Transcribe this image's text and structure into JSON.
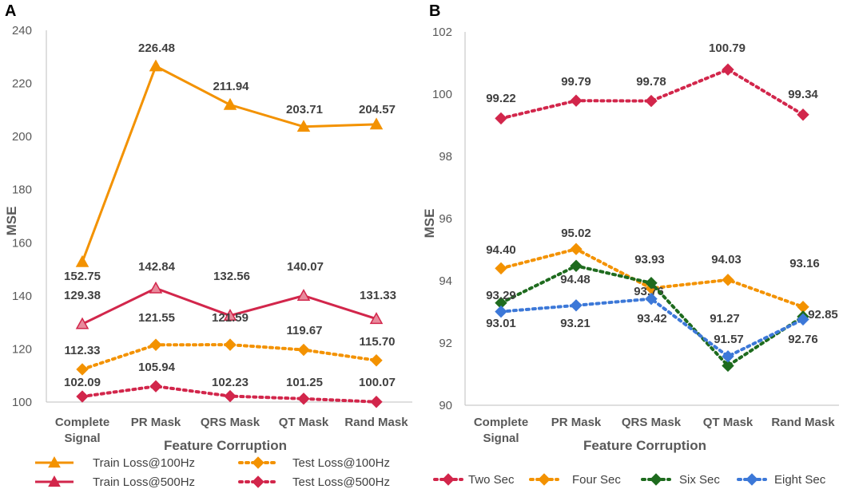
{
  "chart_data": [
    {
      "panel": "A",
      "type": "line",
      "title": "",
      "xlabel": "Feature Corruption",
      "ylabel": "MSE",
      "ylim": [
        100,
        240
      ],
      "yticks": [
        "100",
        "120",
        "140",
        "160",
        "180",
        "200",
        "220",
        "240"
      ],
      "grid": false,
      "legend_position": "bottom",
      "categories": [
        "Complete\nSignal",
        "PR Mask",
        "QRS Mask",
        "QT Mask",
        "Rand Mask"
      ],
      "series": [
        {
          "name": "Train Loss@100Hz",
          "color": "#F39200",
          "style": "solid",
          "marker": "triangle",
          "values": [
            152.75,
            226.48,
            211.94,
            203.71,
            204.57
          ],
          "labels": [
            "152.75",
            "226.48",
            "211.94",
            "203.71",
            "204.57"
          ]
        },
        {
          "name": "Train Loss@500Hz",
          "color": "#D2264B",
          "style": "solid",
          "marker": "triangle",
          "values": [
            129.38,
            142.84,
            132.56,
            140.07,
            131.33
          ],
          "labels": [
            "129.38",
            "142.84",
            "132.56",
            "140.07",
            "131.33"
          ]
        },
        {
          "name": "Test Loss@100Hz",
          "color": "#F39200",
          "style": "dotted",
          "marker": "diamond",
          "values": [
            112.33,
            121.55,
            121.59,
            119.67,
            115.7
          ],
          "labels": [
            "112.33",
            "121.55",
            "121.59",
            "119.67",
            "115.70"
          ]
        },
        {
          "name": "Test Loss@500Hz",
          "color": "#D2264B",
          "style": "dotted",
          "marker": "diamond",
          "values": [
            102.09,
            105.94,
            102.23,
            101.25,
            100.07
          ],
          "labels": [
            "102.09",
            "105.94",
            "102.23",
            "101.25",
            "100.07"
          ]
        }
      ]
    },
    {
      "panel": "B",
      "type": "line",
      "title": "",
      "xlabel": "Feature Corruption",
      "ylabel": "MSE",
      "ylim": [
        90,
        102
      ],
      "yticks": [
        "90",
        "92",
        "94",
        "96",
        "98",
        "100",
        "102"
      ],
      "grid": false,
      "legend_position": "bottom",
      "categories": [
        "Complete\nSignal",
        "PR Mask",
        "QRS Mask",
        "QT Mask",
        "Rand Mask"
      ],
      "series": [
        {
          "name": "Two Sec",
          "color": "#D2264B",
          "style": "dotted",
          "marker": "diamond",
          "values": [
            99.22,
            99.79,
            99.78,
            100.79,
            99.34
          ],
          "labels": [
            "99.22",
            "99.79",
            "99.78",
            "100.79",
            "99.34"
          ]
        },
        {
          "name": "Four Sec",
          "color": "#F39200",
          "style": "dotted",
          "marker": "diamond",
          "values": [
            94.4,
            95.02,
            93.76,
            94.03,
            93.16
          ],
          "labels": [
            "94.40",
            "95.02",
            "93.76",
            "94.03",
            "93.16"
          ]
        },
        {
          "name": "Six Sec",
          "color": "#1E6B1E",
          "style": "dotted",
          "marker": "diamond",
          "values": [
            93.29,
            94.48,
            93.93,
            91.27,
            92.85
          ],
          "labels": [
            "93.29",
            "94.48",
            "93.93",
            "91.27",
            "92.85"
          ]
        },
        {
          "name": "Eight Sec",
          "color": "#3C78D8",
          "style": "dotted",
          "marker": "diamond",
          "values": [
            93.01,
            93.21,
            93.42,
            91.57,
            92.76
          ],
          "labels": [
            "93.01",
            "93.21",
            "93.42",
            "91.57",
            "92.76"
          ]
        }
      ]
    }
  ]
}
